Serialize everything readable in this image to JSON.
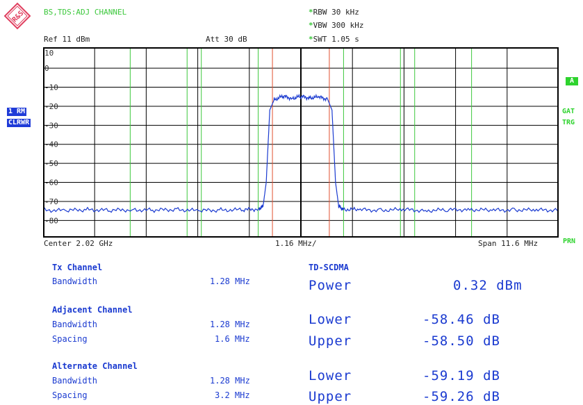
{
  "header": {
    "mode_title": "BS,TDS:ADJ CHANNEL",
    "ref": "Ref  11 dBm",
    "att": "Att  30 dB",
    "rbw": "RBW 30 kHz",
    "vbw": "VBW 300 kHz",
    "swt": "SWT 1.05 s",
    "star": "*"
  },
  "logo": {
    "text": "R&S",
    "icon": "rohde-schwarz-logo"
  },
  "side_tags": {
    "trace": "1 RM",
    "trace_mode": "CLRWR",
    "a": "A",
    "gat": "GAT",
    "trg": "TRG",
    "prn": "PRN"
  },
  "y_ticks": [
    "10",
    "0",
    "-10",
    "-20",
    "-30",
    "-40",
    "-50",
    "-60",
    "-70",
    "-80"
  ],
  "footer": {
    "center": "Center 2.02 GHz",
    "per_div": "1.16 MHz/",
    "span": "Span 11.6 MHz"
  },
  "chart_data": {
    "type": "line",
    "xlim": [
      -5.8,
      5.8
    ],
    "ylim": [
      -89,
      11
    ],
    "grid": true,
    "trace_color": "#1a3ad0",
    "channel_line_color": "#e05030",
    "adjacent_line_color": "#3cc83c",
    "tx_channel_edges_mhz": [
      -0.64,
      0.64
    ],
    "adjacent_edges_mhz": [
      -2.24,
      -0.96,
      0.96,
      2.24
    ],
    "alternate_edges_mhz": [
      -3.84,
      -2.56,
      2.56,
      3.84
    ],
    "series": [
      {
        "values_x_mhz": [
          -5.8,
          -5.3,
          -4.8,
          -4.3,
          -3.8,
          -3.3,
          -2.8,
          -2.3,
          -1.8,
          -1.3,
          -0.95,
          -0.85,
          -0.78,
          -0.7,
          -0.6,
          -0.4,
          -0.2,
          0.0,
          0.2,
          0.4,
          0.6,
          0.7,
          0.78,
          0.85,
          0.95,
          1.3,
          1.8,
          2.3,
          2.8,
          3.3,
          3.8,
          4.3,
          4.8,
          5.3,
          5.8
        ],
        "values_y_dbm": [
          -74.5,
          -74.8,
          -74.3,
          -74.7,
          -74.4,
          -74.6,
          -74.2,
          -74.9,
          -74.5,
          -74.4,
          -74.0,
          -72.5,
          -60,
          -22,
          -16.5,
          -14.8,
          -15.8,
          -14.9,
          -15.6,
          -15.2,
          -16.2,
          -22,
          -60,
          -72.5,
          -74.1,
          -74.4,
          -74.6,
          -74.3,
          -74.8,
          -74.5,
          -74.2,
          -74.7,
          -74.4,
          -74.6,
          -74.5
        ]
      }
    ]
  },
  "results": {
    "tx_title": "Tx Channel",
    "tx_bw_label": "Bandwidth",
    "tx_bw_value": "1.28 MHz",
    "standard": "TD-SCDMA",
    "power_label": "Power",
    "power_value": "0.32 dBm",
    "adj_title": "Adjacent Channel",
    "adj_bw_label": "Bandwidth",
    "adj_bw_value": "1.28 MHz",
    "adj_sp_label": "Spacing",
    "adj_sp_value": "1.6 MHz",
    "adj_lower_label": "Lower",
    "adj_lower_value": "-58.46 dB",
    "adj_upper_label": "Upper",
    "adj_upper_value": "-58.50 dB",
    "alt_title": "Alternate Channel",
    "alt_bw_label": "Bandwidth",
    "alt_bw_value": "1.28 MHz",
    "alt_sp_label": "Spacing",
    "alt_sp_value": "3.2 MHz",
    "alt_lower_label": "Lower",
    "alt_lower_value": "-59.19 dB",
    "alt_upper_label": "Upper",
    "alt_upper_value": "-59.26 dB"
  }
}
